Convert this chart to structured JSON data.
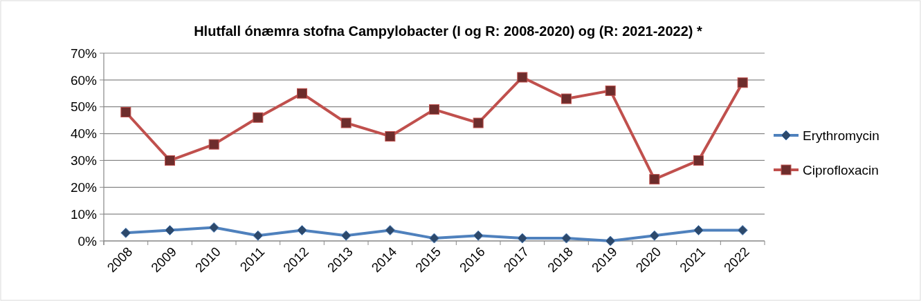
{
  "chart_data": {
    "type": "line",
    "title": "Hlutfall ónæmra stofna Campylobacter (I og R: 2008-2020) og (R: 2021-2022) *",
    "categories": [
      "2008",
      "2009",
      "2010",
      "2011",
      "2012",
      "2013",
      "2014",
      "2015",
      "2016",
      "2017",
      "2018",
      "2019",
      "2020",
      "2021",
      "2022"
    ],
    "series": [
      {
        "name": "Erythromycin",
        "color": "#4f81bd",
        "marker": "diamond",
        "values": [
          3,
          4,
          5,
          2,
          4,
          2,
          4,
          1,
          2,
          1,
          1,
          0,
          2,
          4,
          4
        ]
      },
      {
        "name": "Ciprofloxacin",
        "color": "#c0504d",
        "marker": "square",
        "values": [
          48,
          30,
          36,
          46,
          55,
          44,
          39,
          49,
          44,
          61,
          53,
          56,
          23,
          30,
          59
        ]
      }
    ],
    "ylim": [
      0,
      70
    ],
    "yticks": [
      {
        "value": 0,
        "label": "0%"
      },
      {
        "value": 10,
        "label": "10%"
      },
      {
        "value": 20,
        "label": "20%"
      },
      {
        "value": 30,
        "label": "30%"
      },
      {
        "value": 40,
        "label": "40%"
      },
      {
        "value": 50,
        "label": "50%"
      },
      {
        "value": 60,
        "label": "60%"
      },
      {
        "value": 70,
        "label": "70%"
      }
    ],
    "grid": "y",
    "legend": "right",
    "line_style": "solid"
  }
}
